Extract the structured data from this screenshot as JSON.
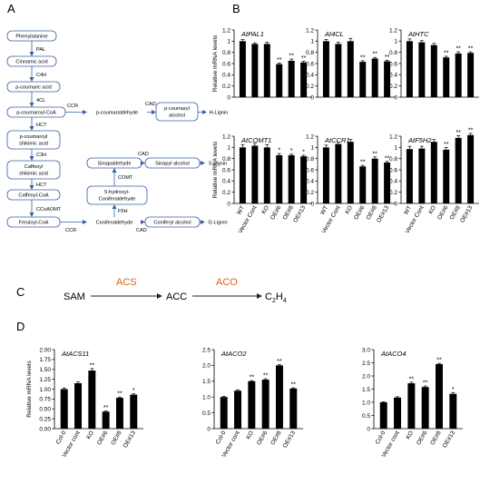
{
  "panels": {
    "a": "A",
    "b": "B",
    "c": "C",
    "d": "D"
  },
  "pathway": {
    "nodes": [
      {
        "id": "phe",
        "label": "Phenylalanine"
      },
      {
        "id": "cin",
        "label": "Cinnamic acid"
      },
      {
        "id": "pca",
        "label": "p-coumaric acid"
      },
      {
        "id": "pcc",
        "label": "p-coumaroyl-CoA"
      },
      {
        "id": "pcal",
        "label": "p-coumaraldehyde"
      },
      {
        "id": "pcoh",
        "label": "p-coumaryl alcohol"
      },
      {
        "id": "hlig",
        "label": "H-Lignin"
      },
      {
        "id": "pcsa",
        "label": "p-coumaroyl shikimic acid"
      },
      {
        "id": "cfsa",
        "label": "Caffeoyl shikimic acid"
      },
      {
        "id": "cfc",
        "label": "Caffeoyl-CoA"
      },
      {
        "id": "frc",
        "label": "Feruloyl-CoA"
      },
      {
        "id": "conal",
        "label": "Coniferaldehyde"
      },
      {
        "id": "conoh",
        "label": "Coniferyl alcohol"
      },
      {
        "id": "glig",
        "label": "G-Lignin"
      },
      {
        "id": "hcal",
        "label": "5-hydroxyl-Coniferaldehyde"
      },
      {
        "id": "sinal",
        "label": "Sinapaldehyde"
      },
      {
        "id": "sinoh",
        "label": "Sinapyl alcohol"
      },
      {
        "id": "slig",
        "label": "S-Lignin"
      }
    ],
    "enzymes": {
      "pal": "PAL",
      "c4h": "C4H",
      "cl4": "4CL",
      "ccr1": "CCR",
      "cad1": "CAD",
      "hct1": "HCT",
      "c3h": "C3H",
      "hct2": "HCT",
      "ccoaomt": "CCoAOMT",
      "ccr2": "CCR",
      "cad2": "CAD",
      "f5h": "F5H",
      "comt": "COMT",
      "cad3": "CAD"
    }
  },
  "reaction": {
    "substrate": "SAM",
    "enzyme1": "ACS",
    "intermediate": "ACC",
    "enzyme2": "ACO",
    "product": "C2H4",
    "enzyme_color": "#d9601a"
  },
  "chart_data": [
    {
      "type": "bar",
      "title": "AtPAL1",
      "ylabel": "Relative mRNA levels",
      "ylim": [
        0,
        1.2
      ],
      "yticks": [
        "0",
        "0.2",
        "0.4",
        "0.6",
        "0.8",
        "1",
        "1.2"
      ],
      "categories": [
        "WT",
        "Vector Cont",
        "KO",
        "OE#6",
        "OE#8",
        "OE#13"
      ],
      "values": [
        1.0,
        0.95,
        0.95,
        0.59,
        0.65,
        0.62
      ],
      "errors": [
        0.03,
        0.02,
        0.03,
        0.02,
        0.03,
        0.02
      ],
      "significance": [
        "",
        "",
        "",
        "**",
        "**",
        "**"
      ]
    },
    {
      "type": "bar",
      "title": "At4CL",
      "ylabel": "",
      "ylim": [
        0,
        1.2
      ],
      "yticks": [
        "0",
        "0.2",
        "0.4",
        "0.6",
        "0.8",
        "1",
        "1.2"
      ],
      "categories": [
        "WT",
        "Vector Cont",
        "KO",
        "OE#6",
        "OE#8",
        "OE#13"
      ],
      "values": [
        1.0,
        0.95,
        1.0,
        0.63,
        0.69,
        0.64
      ],
      "errors": [
        0.03,
        0.03,
        0.05,
        0.02,
        0.02,
        0.02
      ],
      "significance": [
        "",
        "",
        "",
        "**",
        "**",
        "**"
      ]
    },
    {
      "type": "bar",
      "title": "AtHTC",
      "ylabel": "",
      "ylim": [
        0,
        1.2
      ],
      "yticks": [
        "0",
        "0.2",
        "0.4",
        "0.6",
        "0.8",
        "1",
        "1.2"
      ],
      "categories": [
        "WT",
        "Vector Cont",
        "KO",
        "OE#6",
        "OE#8",
        "OE#13"
      ],
      "values": [
        1.0,
        0.98,
        0.93,
        0.71,
        0.78,
        0.79
      ],
      "errors": [
        0.04,
        0.03,
        0.03,
        0.02,
        0.03,
        0.02
      ],
      "significance": [
        "",
        "",
        "",
        "**",
        "**",
        "**"
      ]
    },
    {
      "type": "bar",
      "title": "AtCOMT1",
      "ylabel": "Relative mRNA levels",
      "ylim": [
        0,
        1.2
      ],
      "yticks": [
        "0",
        "0.2",
        "0.4",
        "0.6",
        "0.8",
        "1",
        "1.2"
      ],
      "categories": [
        "WT",
        "Vector Cont",
        "KO",
        "OE#6",
        "OE#8",
        "OE#13"
      ],
      "values": [
        1.0,
        1.03,
        1.0,
        0.86,
        0.86,
        0.84
      ],
      "errors": [
        0.05,
        0.04,
        0.05,
        0.03,
        0.02,
        0.02
      ],
      "significance": [
        "",
        "",
        "",
        "*",
        "*",
        "*"
      ]
    },
    {
      "type": "bar",
      "title": "AtCCR1",
      "ylabel": "",
      "ylim": [
        0,
        1.2
      ],
      "yticks": [
        "0",
        "0.2",
        "0.4",
        "0.6",
        "0.8",
        "1",
        "1.2"
      ],
      "categories": [
        "WT",
        "Vector Cont",
        "KO",
        "OE#6",
        "OE#8",
        "OE#13"
      ],
      "values": [
        1.0,
        1.06,
        1.1,
        0.66,
        0.8,
        0.73
      ],
      "errors": [
        0.04,
        0.03,
        0.04,
        0.02,
        0.03,
        0.02
      ],
      "significance": [
        "",
        "",
        "",
        "**",
        "**",
        "**"
      ]
    },
    {
      "type": "bar",
      "title": "AtF5H2",
      "ylabel": "",
      "ylim": [
        0,
        1.2
      ],
      "yticks": [
        "0",
        "0.2",
        "0.4",
        "0.6",
        "0.8",
        "1",
        "1.2"
      ],
      "categories": [
        "WT",
        "Vector Cont",
        "KO",
        "OE#6",
        "OE#8",
        "OE#13"
      ],
      "values": [
        0.97,
        0.98,
        1.1,
        0.96,
        1.17,
        1.22
      ],
      "errors": [
        0.05,
        0.04,
        0.04,
        0.04,
        0.04,
        0.03
      ],
      "significance": [
        "",
        "",
        "",
        "**",
        "**",
        "**"
      ]
    },
    {
      "type": "bar",
      "title": "AtACS11",
      "ylabel": "Relative mRNA levels",
      "ylim": [
        0,
        2.0
      ],
      "yticks": [
        "0.00",
        "0.25",
        "0.50",
        "0.75",
        "1.00",
        "1.25",
        "1.50",
        "1.75",
        "2.00"
      ],
      "categories": [
        "Col-0",
        "Vector cont",
        "KO",
        "OE#6",
        "OE#8",
        "OE#13"
      ],
      "values": [
        1.0,
        1.15,
        1.47,
        0.43,
        0.78,
        0.86
      ],
      "errors": [
        0.03,
        0.03,
        0.05,
        0.02,
        0.02,
        0.02
      ],
      "significance": [
        "",
        "",
        "**",
        "**",
        "**",
        "*"
      ]
    },
    {
      "type": "bar",
      "title": "AtACO2",
      "ylabel": "",
      "ylim": [
        0,
        2.5
      ],
      "yticks": [
        "0",
        "0.5",
        "1.0",
        "1.5",
        "2.0",
        "2.5"
      ],
      "categories": [
        "Col-0",
        "Vector cont",
        "KO",
        "OE#6",
        "OE#8",
        "OE#13"
      ],
      "values": [
        1.0,
        1.2,
        1.5,
        1.55,
        2.0,
        1.27
      ],
      "errors": [
        0.02,
        0.03,
        0.02,
        0.03,
        0.03,
        0.02
      ],
      "significance": [
        "",
        "",
        "**",
        "**",
        "**",
        "**"
      ]
    },
    {
      "type": "bar",
      "title": "AtACO4",
      "ylabel": "",
      "ylim": [
        0,
        3.0
      ],
      "yticks": [
        "0",
        "0.5",
        "1.0",
        "1.5",
        "2.0",
        "2.5",
        "3.0"
      ],
      "categories": [
        "Col-0",
        "Vector cont",
        "KO",
        "OE#6",
        "OE#8",
        "OE#13"
      ],
      "values": [
        1.0,
        1.18,
        1.72,
        1.58,
        2.45,
        1.32
      ],
      "errors": [
        0.02,
        0.03,
        0.04,
        0.04,
        0.03,
        0.05
      ],
      "significance": [
        "",
        "",
        "**",
        "**",
        "**",
        "*"
      ]
    }
  ]
}
